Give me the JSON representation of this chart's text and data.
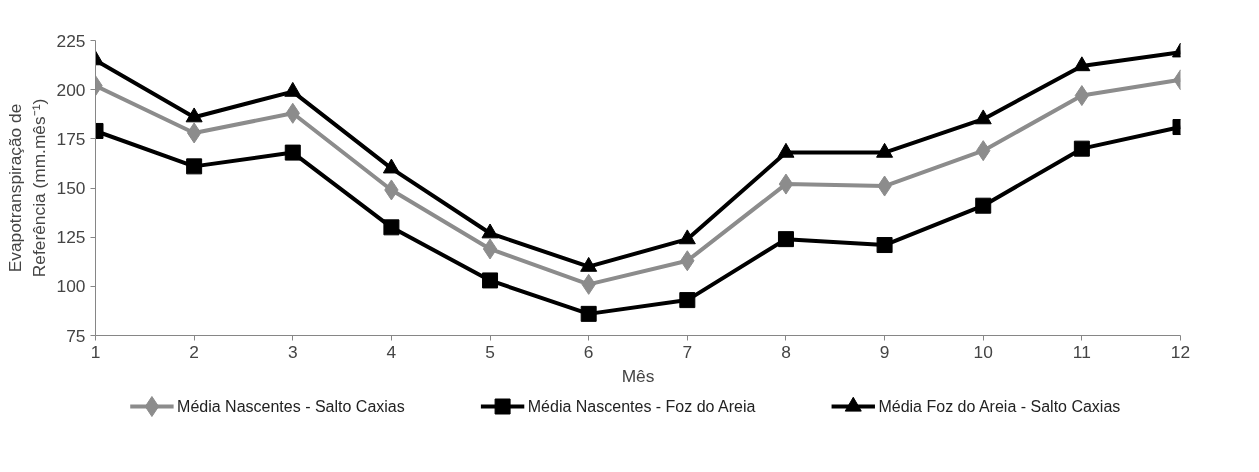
{
  "chart_data": {
    "type": "line",
    "xlabel": "Mês",
    "ylabel": "Evapotranspiração de\nReferência (mm.mês⁻¹)",
    "x": [
      1,
      2,
      3,
      4,
      5,
      6,
      7,
      8,
      9,
      10,
      11,
      12
    ],
    "xlim": [
      1,
      12
    ],
    "xticks": [
      1,
      2,
      3,
      4,
      5,
      6,
      7,
      8,
      9,
      10,
      11,
      12
    ],
    "ylim": [
      75,
      225
    ],
    "yticks": [
      75,
      100,
      125,
      150,
      175,
      200,
      225
    ],
    "grid": false,
    "legend": "bottom",
    "series": [
      {
        "name": "Média Nascentes - Salto Caxias",
        "color": "#8c8c8c",
        "marker": "diamond",
        "values": [
          202,
          178,
          188,
          149,
          119,
          101,
          113,
          152,
          151,
          169,
          197,
          205
        ]
      },
      {
        "name": "Média Nascentes - Foz do Areia",
        "color": "#000000",
        "marker": "square",
        "values": [
          179,
          161,
          168,
          130,
          103,
          86,
          93,
          124,
          121,
          141,
          170,
          181
        ]
      },
      {
        "name": "Média Foz do Areia - Salto Caxias",
        "color": "#000000",
        "marker": "triangle",
        "values": [
          215,
          186,
          199,
          160,
          127,
          110,
          124,
          168,
          168,
          185,
          212,
          219
        ]
      }
    ]
  }
}
